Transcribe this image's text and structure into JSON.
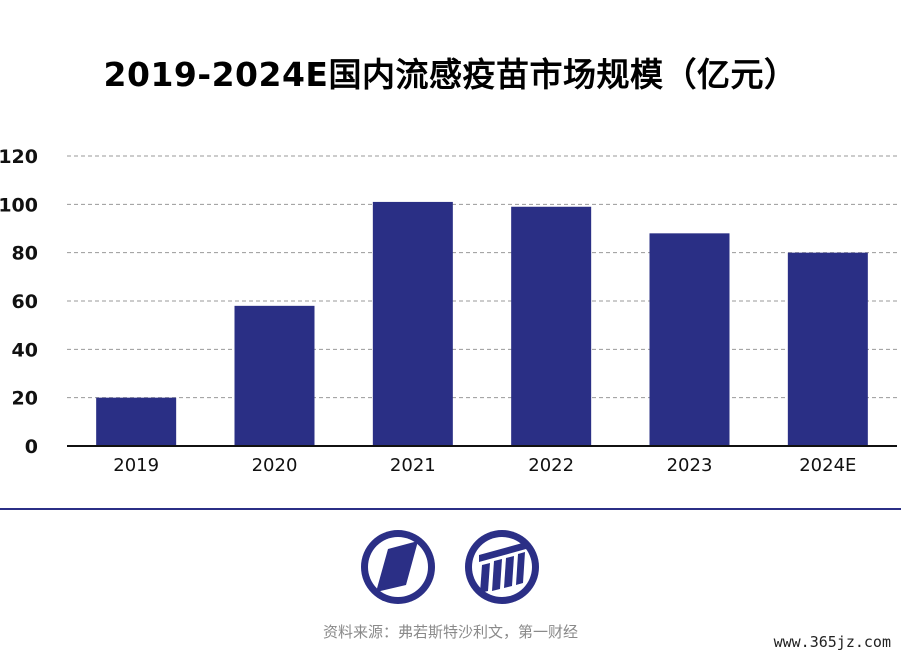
{
  "title": "2019-2024E国内流感疫苗市场规模（亿元）",
  "source": "资料来源：弗若斯特沙利文，第一财经",
  "watermark": "www.365jz.com",
  "colors": {
    "bar": "#2a2f85",
    "grid": "#9a9a9a",
    "axis": "#111111",
    "divider": "#2b2f86"
  },
  "chart_data": {
    "type": "bar",
    "title": "2019-2024E国内流感疫苗市场规模（亿元）",
    "xlabel": "",
    "ylabel": "",
    "categories": [
      "2019",
      "2020",
      "2021",
      "2022",
      "2023",
      "2024E"
    ],
    "values": [
      20,
      58,
      101,
      99,
      88,
      80
    ],
    "ylim": [
      0,
      120
    ],
    "yticks": [
      0,
      20,
      40,
      60,
      80,
      100,
      120
    ],
    "grid": true,
    "legend": "none"
  },
  "logos": {
    "left": "parallelogram-logo-icon",
    "right": "bars-logo-icon"
  }
}
